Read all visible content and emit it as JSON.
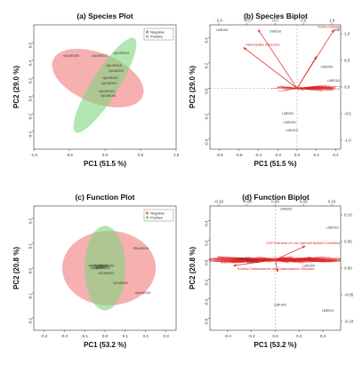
{
  "chart_data": [
    {
      "panel": "a",
      "type": "scatter",
      "title": "(a) Species Plot",
      "xlabel": "PC1 (51.5 %)",
      "ylabel": "PC2 (29.0 %)",
      "xlim": [
        -1.0,
        1.0
      ],
      "ylim": [
        -0.6,
        0.8
      ],
      "xticks": [
        "-1.0",
        "-0.5",
        "0.0",
        "0.5",
        "1.0"
      ],
      "yticks": [
        "-0.4",
        "-0.2",
        "0.0",
        "0.2",
        "0.4",
        "0.6"
      ],
      "legend": [
        "Negative",
        "Positive"
      ],
      "legend_position": "top-right",
      "colors": {
        "negative": "#f07b7b",
        "positive": "#7fd67f"
      },
      "ellipses": [
        {
          "group": "Negative",
          "cx": -0.1,
          "cy": 0.2,
          "rx": 0.68,
          "ry": 0.28,
          "angle_deg": -22
        },
        {
          "group": "Positive",
          "cx": 0.0,
          "cy": 0.12,
          "rx": 0.78,
          "ry": 0.15,
          "angle_deg": 58
        }
      ],
      "points": [
        {
          "label": "LME009",
          "group": "Negative",
          "x": -0.55,
          "y": 0.45
        },
        {
          "label": "LME010",
          "group": "Negative",
          "x": -0.15,
          "y": 0.45
        },
        {
          "label": "LME019",
          "group": "Positive",
          "x": 0.15,
          "y": 0.48
        },
        {
          "label": "LME018",
          "group": "Negative",
          "x": 0.05,
          "y": 0.34
        },
        {
          "label": "LME022",
          "group": "Positive",
          "x": 0.08,
          "y": 0.28
        },
        {
          "label": "LME022",
          "group": "Negative",
          "x": 0.0,
          "y": 0.2
        },
        {
          "label": "LME003",
          "group": "Positive",
          "x": -0.02,
          "y": 0.14
        },
        {
          "label": "LME024",
          "group": "Negative",
          "x": -0.05,
          "y": 0.05
        },
        {
          "label": "LME001",
          "group": "Positive",
          "x": -0.03,
          "y": 0.0
        }
      ]
    },
    {
      "panel": "b",
      "type": "scatter",
      "title": "(b) Species Biplot",
      "xlabel": "PC1 (51.5 %)",
      "ylabel": "PC2 (29.0 %)",
      "xlim": [
        -0.9,
        0.45
      ],
      "ylim": [
        -0.48,
        0.5
      ],
      "xticks": [
        "-0.8",
        "-0.6",
        "-0.4",
        "-0.2",
        "0.0",
        "0.2",
        "0.4"
      ],
      "yticks": [
        "-0.4",
        "-0.2",
        "0.0",
        "0.2",
        "0.4"
      ],
      "top_ticks": [
        "-1.0",
        "-0.5",
        "0.0",
        "0.5",
        "1.0"
      ],
      "right_ticks": [
        "1.0",
        "0.5",
        "0.0",
        "-0.5",
        "-1.0"
      ],
      "arrows": [
        {
          "label": "Haemophilus influenzae",
          "x": -0.55,
          "y": 0.32
        },
        {
          "label": "Rothia mucilaginosa",
          "x": 0.38,
          "y": 0.46
        },
        {
          "label": "",
          "x": 0.2,
          "y": 0.25
        },
        {
          "label": "",
          "x": -0.4,
          "y": 0.46
        }
      ],
      "points": [
        {
          "label": "LME009",
          "x": -0.85,
          "y": 0.46
        },
        {
          "label": "LME010",
          "x": -0.3,
          "y": 0.45
        },
        {
          "label": "LME019",
          "x": 0.36,
          "y": 0.46
        },
        {
          "label": "LME009",
          "x": 0.23,
          "y": 0.17
        },
        {
          "label": "LME018",
          "x": 0.3,
          "y": 0.06
        },
        {
          "label": "LME022",
          "x": -0.17,
          "y": -0.2
        },
        {
          "label": "LME003",
          "x": -0.15,
          "y": -0.27
        },
        {
          "label": "LME024",
          "x": -0.13,
          "y": -0.33
        }
      ]
    },
    {
      "panel": "c",
      "type": "scatter",
      "title": "(c) Function Plot",
      "xlabel": "PC1 (53.2 %)",
      "ylabel": "PC2 (20.8 %)",
      "xlim": [
        -0.35,
        0.35
      ],
      "ylim": [
        -0.25,
        0.25
      ],
      "xticks": [
        "-0.3",
        "-0.2",
        "-0.1",
        "0.0",
        "0.1",
        "0.2",
        "0.3"
      ],
      "yticks": [
        "-0.2",
        "-0.1",
        "0.0",
        "0.1",
        "0.2"
      ],
      "legend": [
        "Negative",
        "Positive"
      ],
      "legend_position": "top-right",
      "colors": {
        "negative": "#f07b7b",
        "positive": "#7fd67f"
      },
      "ellipses": [
        {
          "group": "Negative",
          "cx": 0.02,
          "cy": 0.0,
          "rx": 0.23,
          "ry": 0.15,
          "angle_deg": 0
        },
        {
          "group": "Positive",
          "cx": 0.0,
          "cy": 0.0,
          "rx": 0.1,
          "ry": 0.17,
          "angle_deg": 0
        }
      ],
      "points": [
        {
          "label": "LME019",
          "group": "Negative",
          "x": 0.15,
          "y": 0.08
        },
        {
          "label": "LME018",
          "group": "Negative",
          "x": -0.07,
          "y": 0.01
        },
        {
          "label": "LME005",
          "group": "Positive",
          "x": -0.05,
          "y": 0.01
        },
        {
          "label": "LME022",
          "group": "Negative",
          "x": -0.06,
          "y": 0.0
        },
        {
          "label": "LME024",
          "group": "Positive",
          "x": -0.04,
          "y": 0.0
        },
        {
          "label": "LME009",
          "group": "Positive",
          "x": -0.02,
          "y": 0.01
        },
        {
          "label": "LME003",
          "group": "Negative",
          "x": -0.02,
          "y": -0.02
        },
        {
          "label": "LME001",
          "group": "Positive",
          "x": 0.05,
          "y": -0.06
        },
        {
          "label": "LME002",
          "group": "Negative",
          "x": 0.16,
          "y": -0.1
        }
      ]
    },
    {
      "panel": "d",
      "type": "scatter",
      "title": "(d) Function Biplot",
      "xlabel": "PC1 (53.2 %)",
      "ylabel": "PC2 (20.8 %)",
      "xlim": [
        -0.55,
        0.55
      ],
      "ylim": [
        -0.72,
        0.55
      ],
      "xticks": [
        "-0.4",
        "-0.2",
        "0.0",
        "0.2",
        "0.4"
      ],
      "yticks": [
        "-0.6",
        "-0.4",
        "-0.2",
        "0.0",
        "0.2",
        "0.4"
      ],
      "top_ticks": [
        "-0.10",
        "-0.05",
        "0.00",
        "0.05",
        "0.10"
      ],
      "right_ticks": [
        "0.10",
        "0.05",
        "0.00",
        "-0.05",
        "-0.10"
      ],
      "arrows": [
        {
          "label": "CO2 Tolerance of Low Light and Nutrient Conditions",
          "x": 0.25,
          "y": 0.14
        },
        {
          "label": "N Acetyl Galactosamine and Galactosamine Utilization",
          "x": 0.02,
          "y": -0.12
        },
        {
          "label": "",
          "x": -0.35,
          "y": -0.06
        },
        {
          "label": "",
          "x": 0.3,
          "y": 0.02
        }
      ],
      "points": [
        {
          "label": "LME002",
          "x": 0.03,
          "y": 0.52
        },
        {
          "label": "LME019",
          "x": 0.42,
          "y": 0.33
        },
        {
          "label": "LME009",
          "x": -0.32,
          "y": 0.01
        },
        {
          "label": "LME022",
          "x": -0.25,
          "y": -0.02
        },
        {
          "label": "LME004",
          "x": 0.22,
          "y": -0.06
        },
        {
          "label": "LME003",
          "x": -0.02,
          "y": -0.46
        },
        {
          "label": "LME024",
          "x": 0.38,
          "y": -0.52
        }
      ]
    }
  ]
}
